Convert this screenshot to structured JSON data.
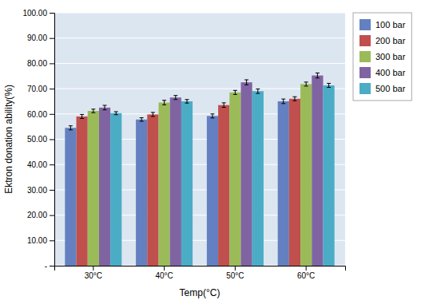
{
  "chart_data": {
    "type": "bar",
    "xlabel": "Temp(°C)",
    "ylabel": "Ektron donation ability(%)",
    "categories": [
      "30°C",
      "40°C",
      "50°C",
      "60°C"
    ],
    "series": [
      {
        "name": "100 bar",
        "color": "#6480C0",
        "values": [
          54.5,
          57.8,
          59.2,
          65.0
        ],
        "errors": [
          0.8,
          0.7,
          0.8,
          0.9
        ]
      },
      {
        "name": "200 bar",
        "color": "#C0504D",
        "values": [
          59.0,
          59.8,
          63.5,
          66.0
        ],
        "errors": [
          0.8,
          0.8,
          0.9,
          0.8
        ]
      },
      {
        "name": "300 bar",
        "color": "#9BBB59",
        "values": [
          61.2,
          64.5,
          68.5,
          71.8
        ],
        "errors": [
          0.7,
          0.9,
          0.8,
          0.8
        ]
      },
      {
        "name": "400 bar",
        "color": "#8064A2",
        "values": [
          62.5,
          66.5,
          72.5,
          75.2
        ],
        "errors": [
          0.9,
          0.8,
          1.0,
          1.0
        ]
      },
      {
        "name": "500 bar",
        "color": "#4BACC6",
        "values": [
          60.3,
          65.0,
          69.0,
          71.3
        ],
        "errors": [
          0.6,
          0.7,
          0.9,
          0.8
        ]
      }
    ],
    "ylim": [
      0,
      100
    ],
    "yticks": [
      {
        "value": 0,
        "label": "-"
      },
      {
        "value": 10,
        "label": "10.00"
      },
      {
        "value": 20,
        "label": "20.00"
      },
      {
        "value": 30,
        "label": "30.00"
      },
      {
        "value": 40,
        "label": "40.00"
      },
      {
        "value": 50,
        "label": "50.00"
      },
      {
        "value": 60,
        "label": "60.00"
      },
      {
        "value": 70,
        "label": "70.00"
      },
      {
        "value": 80,
        "label": "80.00"
      },
      {
        "value": 90,
        "label": "90.00"
      },
      {
        "value": 100,
        "label": "100.00"
      }
    ],
    "grid": true,
    "legend": "right"
  }
}
